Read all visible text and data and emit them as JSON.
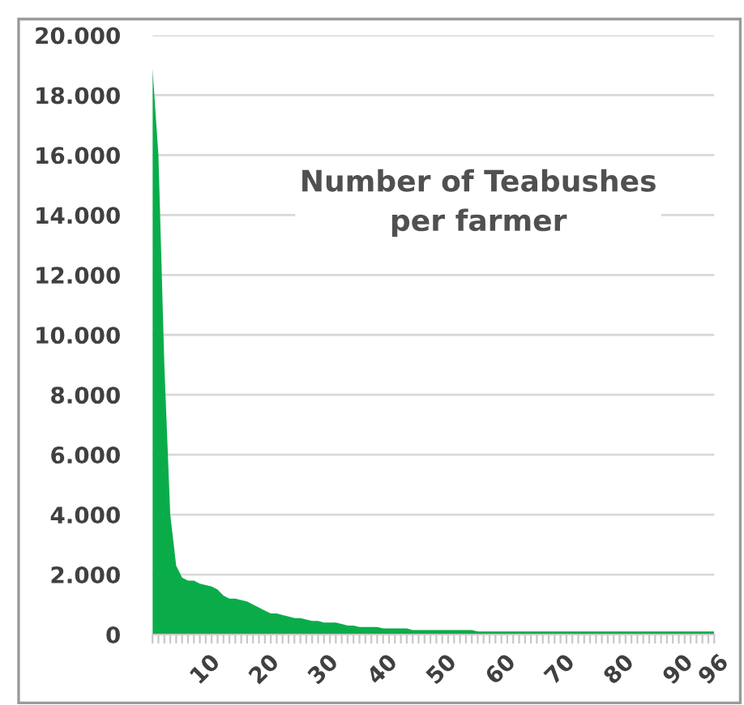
{
  "chart_data": {
    "type": "area",
    "title": "Number of Teabushes\nper farmer",
    "categories": [
      null,
      null,
      null,
      null,
      null,
      null,
      null,
      null,
      null,
      "10",
      null,
      null,
      null,
      null,
      null,
      null,
      null,
      null,
      null,
      "20",
      null,
      null,
      null,
      null,
      null,
      null,
      null,
      null,
      null,
      "30",
      null,
      null,
      null,
      null,
      null,
      null,
      null,
      null,
      null,
      "40",
      null,
      null,
      null,
      null,
      null,
      null,
      null,
      null,
      null,
      "50",
      null,
      null,
      null,
      null,
      null,
      null,
      null,
      null,
      null,
      "60",
      null,
      null,
      null,
      null,
      null,
      null,
      null,
      null,
      null,
      "70",
      null,
      null,
      null,
      null,
      null,
      null,
      null,
      null,
      null,
      "80",
      null,
      null,
      null,
      null,
      null,
      null,
      null,
      null,
      null,
      "90",
      null,
      null,
      null,
      null,
      null,
      "96"
    ],
    "series": [
      {
        "color": "#0aac4a",
        "values": [
          18900,
          16000,
          9000,
          4000,
          2300,
          1900,
          1800,
          1800,
          1700,
          1650,
          1600,
          1500,
          1300,
          1200,
          1200,
          1150,
          1100,
          1000,
          900,
          800,
          700,
          700,
          650,
          600,
          550,
          550,
          500,
          450,
          450,
          400,
          400,
          400,
          350,
          300,
          300,
          250,
          250,
          250,
          250,
          200,
          200,
          200,
          200,
          200,
          150,
          150,
          150,
          150,
          150,
          150,
          150,
          150,
          150,
          150,
          150,
          100,
          100,
          100,
          100,
          100,
          100,
          100,
          100,
          100,
          100,
          100,
          100,
          100,
          100,
          100,
          100,
          100,
          100,
          100,
          100,
          100,
          100,
          100,
          100,
          100,
          100,
          100,
          100,
          100,
          100,
          100,
          100,
          100,
          100,
          100,
          100,
          100,
          100,
          100,
          100,
          100
        ]
      }
    ],
    "ylim": [
      0,
      20000
    ],
    "yticks": [
      0,
      {
        "value": 2000,
        "label": "2.000"
      },
      {
        "value": 4000,
        "label": "4.000"
      },
      {
        "value": 6000,
        "label": "6.000"
      },
      {
        "value": 8000,
        "label": "8.000"
      },
      {
        "value": 10000,
        "label": "10.000"
      },
      {
        "value": 12000,
        "label": "12.000"
      },
      {
        "value": 14000,
        "label": "14.000"
      },
      {
        "value": 16000,
        "label": "16.000"
      },
      {
        "value": 18000,
        "label": "18.000"
      },
      {
        "value": 20000,
        "label": "20.000"
      }
    ],
    "grid": "y",
    "legend": false
  }
}
